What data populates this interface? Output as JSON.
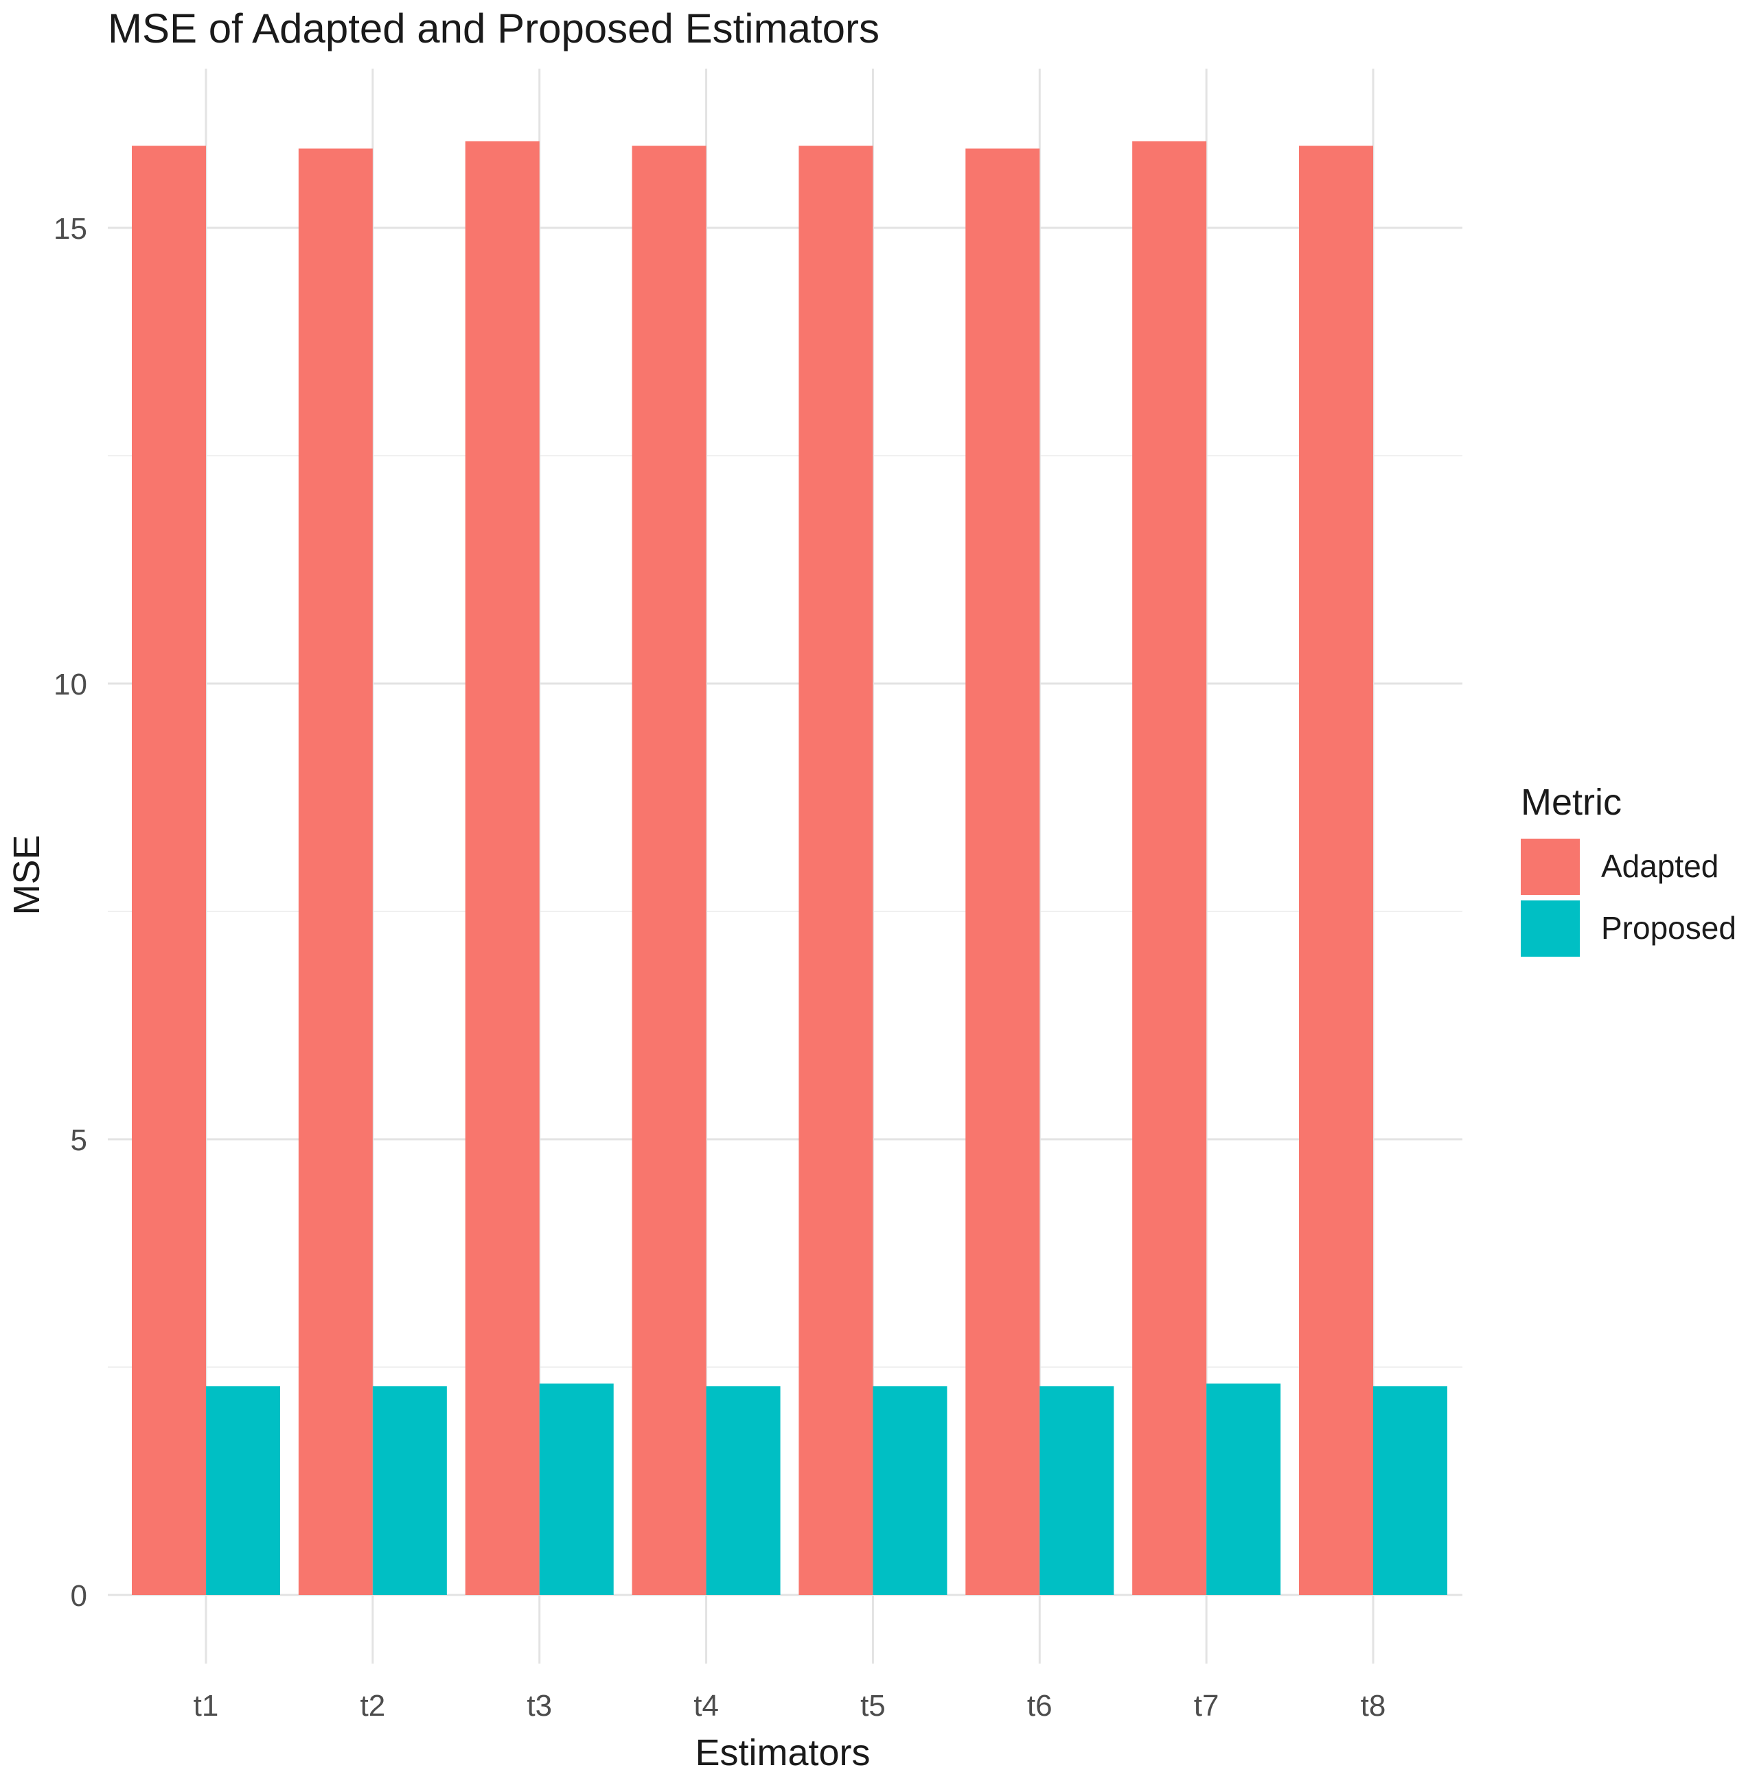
{
  "chart_data": {
    "type": "bar",
    "title": "MSE of Adapted and Proposed Estimators",
    "xlabel": "Estimators",
    "ylabel": "MSE",
    "categories": [
      "t1",
      "t2",
      "t3",
      "t4",
      "t5",
      "t6",
      "t7",
      "t8"
    ],
    "series": [
      {
        "name": "Adapted",
        "color": "#F8766D",
        "values": [
          15.9,
          15.87,
          15.95,
          15.9,
          15.9,
          15.87,
          15.95,
          15.9
        ]
      },
      {
        "name": "Proposed",
        "color": "#00BFC4",
        "values": [
          2.29,
          2.29,
          2.32,
          2.29,
          2.29,
          2.29,
          2.32,
          2.29
        ]
      }
    ],
    "yticks": [
      0,
      5,
      10,
      15
    ],
    "ylim": [
      0,
      16.7
    ],
    "grid": true,
    "legend": {
      "title": "Metric",
      "position": "right"
    }
  }
}
